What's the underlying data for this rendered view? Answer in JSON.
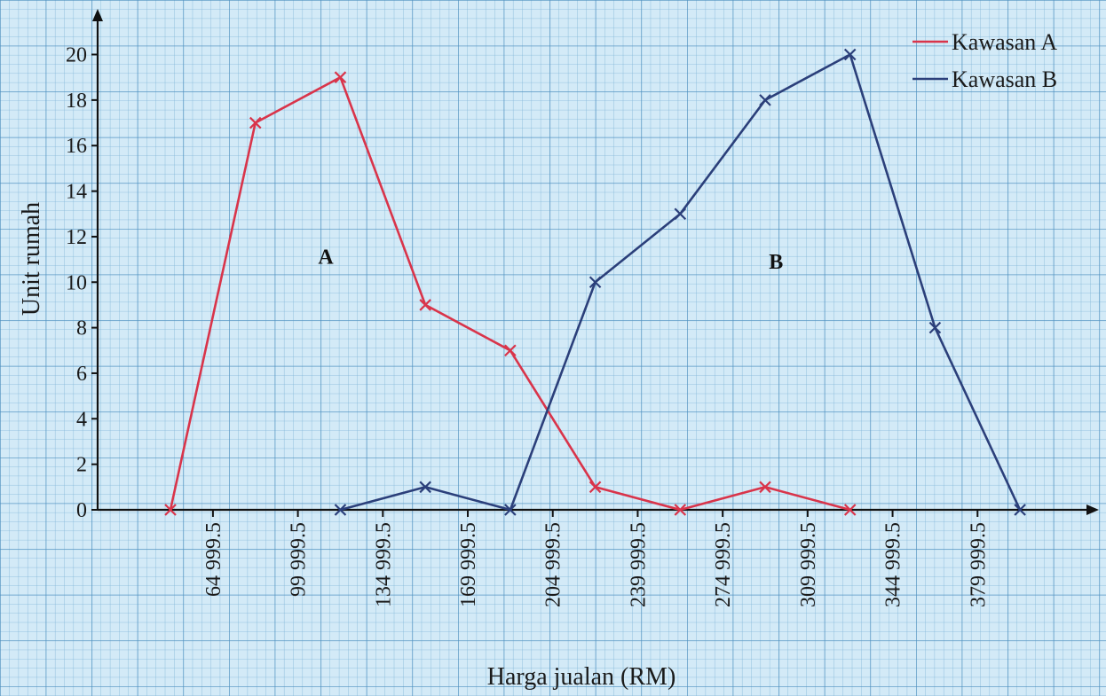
{
  "chart_data": {
    "type": "line",
    "xlabel": "Harga jualan (RM)",
    "ylabel": "Unit rumah",
    "x_tick_values": [
      64999.5,
      99999.5,
      134999.5,
      169999.5,
      204999.5,
      239999.5,
      274999.5,
      309999.5,
      344999.5,
      379999.5
    ],
    "x_tick_labels": [
      "64 999.5",
      "99 999.5",
      "134 999.5",
      "169 999.5",
      "204 999.5",
      "239 999.5",
      "274 999.5",
      "309 999.5",
      "344 999.5",
      "379 999.5"
    ],
    "y_ticks": [
      0,
      2,
      4,
      6,
      8,
      10,
      12,
      14,
      16,
      18,
      20
    ],
    "xlim": [
      17500,
      430000
    ],
    "ylim": [
      0,
      21.5
    ],
    "grid": true,
    "legend_position": "top-right",
    "series": [
      {
        "name": "Kawasan A",
        "color": "#d9344a",
        "x": [
          47499.5,
          82499.5,
          117499.5,
          152499.5,
          187499.5,
          222499.5,
          257499.5,
          292499.5,
          327499.5
        ],
        "y": [
          0,
          17,
          19,
          9,
          7,
          1,
          0,
          1,
          0
        ]
      },
      {
        "name": "Kawasan B",
        "color": "#2b3f7a",
        "x": [
          117499.5,
          152499.5,
          187499.5,
          222499.5,
          257499.5,
          292499.5,
          327499.5,
          362499.5,
          397499.5
        ],
        "y": [
          0,
          1,
          0,
          10,
          13,
          18,
          20,
          8,
          0
        ]
      }
    ],
    "annotations": [
      {
        "text": "A",
        "x": 111500,
        "y": 10.8
      },
      {
        "text": "B",
        "x": 297000,
        "y": 10.6
      }
    ]
  }
}
